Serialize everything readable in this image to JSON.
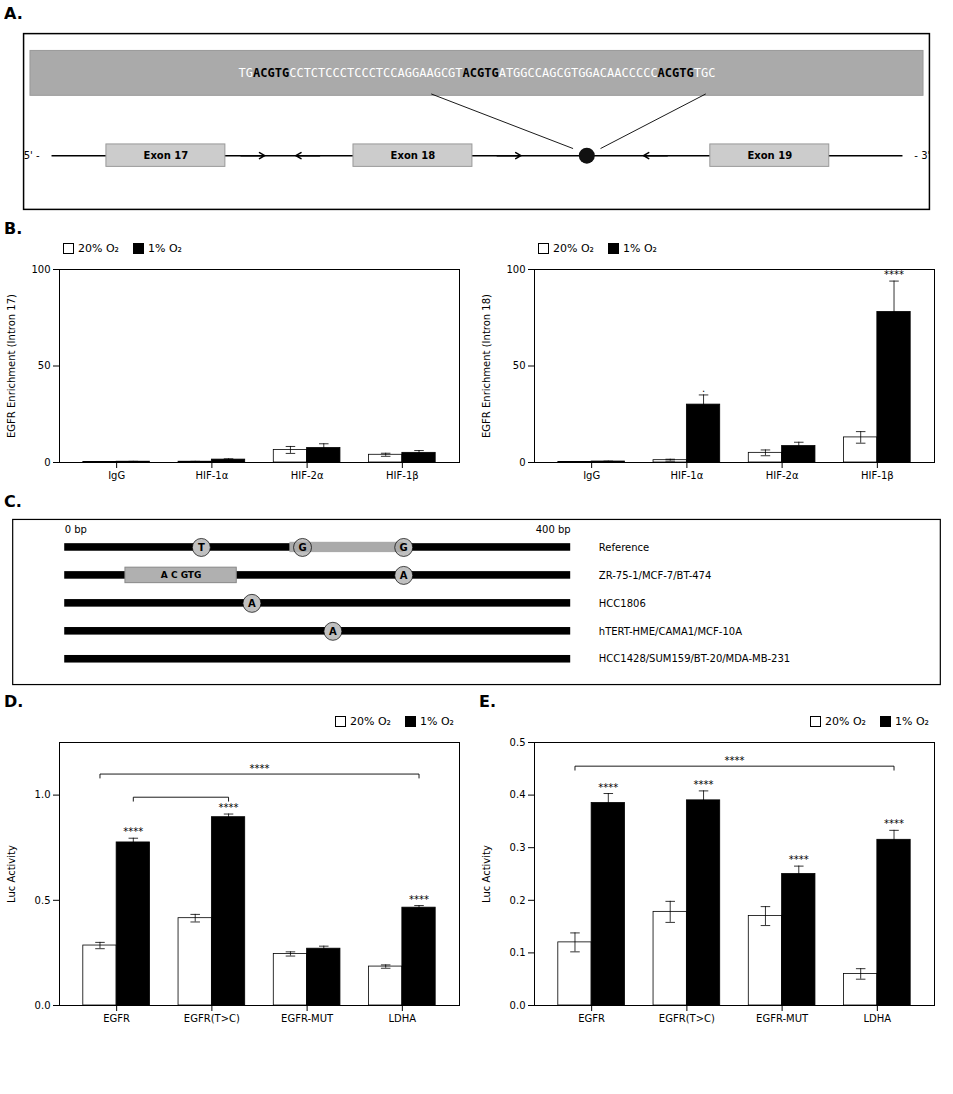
{
  "chart_data": [
    {
      "type": "diagram",
      "title": "A.",
      "sequence": [
        {
          "text": "TG",
          "bold": false
        },
        {
          "text": "ACGTG",
          "bold": true
        },
        {
          "text": "CCTCTCCCTCCCTCCAGGAAGCGT",
          "bold": false
        },
        {
          "text": "ACGTG",
          "bold": true
        },
        {
          "text": "ATGGCCAGCGTGGACAACCCCC",
          "bold": false
        },
        {
          "text": "ACGTG",
          "bold": true
        },
        {
          "text": "TGC",
          "bold": false
        }
      ],
      "exons": [
        "Exon 17",
        "Exon 18",
        "Exon 19"
      ],
      "ends": [
        "5' -",
        "- 3'"
      ]
    },
    {
      "type": "bar",
      "title": "B.",
      "ylabel": "EGFR Enrichment (Intron 17)",
      "categories": [
        "IgG",
        "HIF-1α",
        "HIF-2α",
        "HIF-1β"
      ],
      "series": [
        {
          "name": "20% O₂",
          "color": "white",
          "values": [
            0.3,
            0.4,
            6.5,
            4.0
          ],
          "errors": [
            0.2,
            0.2,
            1.8,
            0.8
          ]
        },
        {
          "name": "1% O₂",
          "color": "black",
          "values": [
            0.4,
            1.5,
            7.5,
            5.0
          ],
          "errors": [
            0.2,
            0.4,
            2.2,
            1.2
          ]
        }
      ],
      "ylim": [
        0,
        100
      ],
      "yticks": [
        0,
        50,
        100
      ],
      "legend": "upper left"
    },
    {
      "type": "bar",
      "ylabel": "EGFR Enrichment (Intron 18)",
      "categories": [
        "IgG",
        "HIF-1α",
        "HIF-2α",
        "HIF-1β"
      ],
      "series": [
        {
          "name": "20% O₂",
          "color": "white",
          "values": [
            0.3,
            1.2,
            5.0,
            13.0
          ],
          "errors": [
            0.2,
            0.5,
            1.5,
            3.0
          ]
        },
        {
          "name": "1% O₂",
          "color": "black",
          "values": [
            0.5,
            30.0,
            8.5,
            78.0
          ],
          "errors": [
            0.2,
            5.0,
            2.0,
            16.0
          ],
          "sig_labels": [
            null,
            ".",
            null,
            "****"
          ]
        }
      ],
      "ylim": [
        0,
        100
      ],
      "yticks": [
        0,
        50,
        100
      ],
      "legend": "upper left"
    },
    {
      "type": "track",
      "title": "C.",
      "scale_labels": [
        "0 bp",
        "400 bp"
      ],
      "rows": [
        {
          "label": "Reference",
          "marks": [
            {
              "shape": "circle",
              "label": "T",
              "position": 0.27
            },
            {
              "shape": "circle",
              "label": "G",
              "position": 0.47
            },
            {
              "shape": "circle",
              "label": "G",
              "position": 0.67
            },
            {
              "shape": "band",
              "start": 0.445,
              "end": 0.67
            }
          ]
        },
        {
          "label": "ZR-75-1/MCF-7/BT-474",
          "marks": [
            {
              "shape": "box",
              "label": "A C GTG",
              "start": 0.12,
              "end": 0.34
            },
            {
              "shape": "circle",
              "label": "A",
              "position": 0.67
            }
          ]
        },
        {
          "label": "HCC1806",
          "marks": [
            {
              "shape": "circle",
              "label": "A",
              "position": 0.37
            }
          ]
        },
        {
          "label": "hTERT-HME/CAMA1/MCF-10A",
          "marks": [
            {
              "shape": "circle",
              "label": "A",
              "position": 0.53
            }
          ]
        },
        {
          "label": "HCC1428/SUM159/BT-20/MDA-MB-231",
          "marks": []
        }
      ]
    },
    {
      "type": "bar",
      "title": "D.",
      "ylabel": "Luc Activity",
      "categories": [
        "EGFR",
        "EGFR(T>C)",
        "EGFR-MUT",
        "LDHA"
      ],
      "series": [
        {
          "name": "20% O₂",
          "color": "white",
          "values": [
            0.285,
            0.415,
            0.245,
            0.185
          ],
          "errors": [
            0.015,
            0.018,
            0.01,
            0.008
          ]
        },
        {
          "name": "1% O₂",
          "color": "black",
          "values": [
            0.775,
            0.895,
            0.27,
            0.465
          ],
          "errors": [
            0.02,
            0.015,
            0.012,
            0.01
          ],
          "sig_labels": [
            "****",
            "****",
            null,
            "****"
          ]
        }
      ],
      "brackets": [
        {
          "from": {
            "category": "EGFR",
            "series": "1% O₂"
          },
          "to": {
            "category": "EGFR(T>C)",
            "series": "1% O₂"
          },
          "y": 0.99
        },
        {
          "from": {
            "category": "EGFR",
            "series": "20% O₂"
          },
          "to": {
            "category": "LDHA",
            "series": "1% O₂"
          },
          "y": 1.1,
          "label": "****"
        }
      ],
      "ylim": [
        0.0,
        1.25
      ],
      "yticks": [
        {
          "value": 0.0,
          "label": "0.0"
        },
        0.5,
        {
          "value": 1.0,
          "label": "1.0"
        }
      ],
      "legend": "upper right"
    },
    {
      "type": "bar",
      "title": "E.",
      "ylabel": "Luc Activity",
      "categories": [
        "EGFR",
        "EGFR(T>C)",
        "EGFR-MUT",
        "LDHA"
      ],
      "series": [
        {
          "name": "20% O₂",
          "color": "white",
          "values": [
            0.12,
            0.178,
            0.17,
            0.06
          ],
          "errors": [
            0.018,
            0.02,
            0.018,
            0.01
          ]
        },
        {
          "name": "1% O₂",
          "color": "black",
          "values": [
            0.385,
            0.39,
            0.25,
            0.315
          ],
          "errors": [
            0.018,
            0.018,
            0.015,
            0.018
          ],
          "sig_labels": [
            "****",
            "****",
            "****",
            "****"
          ]
        }
      ],
      "brackets": [
        {
          "from": {
            "category": "EGFR",
            "series": "20% O₂"
          },
          "to": {
            "category": "LDHA",
            "series": "1% O₂"
          },
          "y": 0.455,
          "label": "****"
        }
      ],
      "ylim": [
        0.0,
        0.5
      ],
      "yticks": [
        {
          "value": 0.0,
          "label": "0.0"
        },
        0.1,
        0.2,
        0.3,
        0.4,
        0.5
      ],
      "legend": "upper right"
    }
  ]
}
